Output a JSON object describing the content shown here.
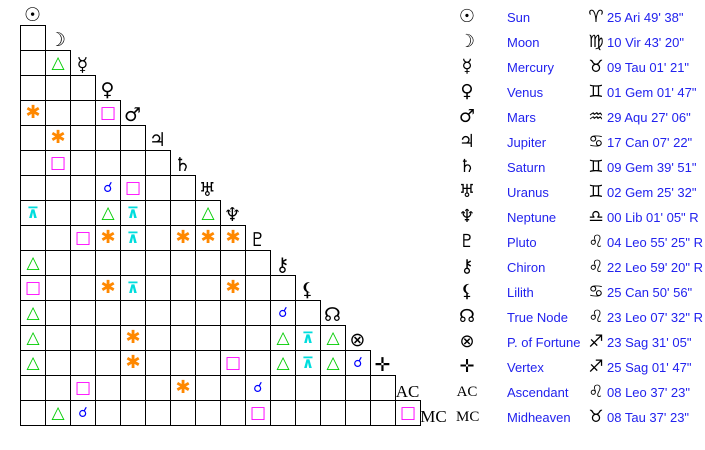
{
  "planets": [
    {
      "name": "Sun",
      "glyph": "☉",
      "icon": "sun-icon",
      "sign_glyph": "♈",
      "sign_icon": "aries-icon",
      "position": "25 Ari 49' 38\""
    },
    {
      "name": "Moon",
      "glyph": "☽",
      "icon": "moon-icon",
      "sign_glyph": "♍",
      "sign_icon": "virgo-icon",
      "position": "10 Vir 43' 20\""
    },
    {
      "name": "Mercury",
      "glyph": "☿",
      "icon": "mercury-icon",
      "sign_glyph": "♉",
      "sign_icon": "taurus-icon",
      "position": "09 Tau 01' 21\""
    },
    {
      "name": "Venus",
      "glyph": "♀",
      "icon": "venus-icon",
      "sign_glyph": "♊",
      "sign_icon": "gemini-icon",
      "position": "01 Gem 01' 47\""
    },
    {
      "name": "Mars",
      "glyph": "♂",
      "icon": "mars-icon",
      "sign_glyph": "♒",
      "sign_icon": "aquarius-icon",
      "position": "29 Aqu 27' 06\""
    },
    {
      "name": "Jupiter",
      "glyph": "♃",
      "icon": "jupiter-icon",
      "sign_glyph": "♋",
      "sign_icon": "cancer-icon",
      "position": "17 Can 07' 22\""
    },
    {
      "name": "Saturn",
      "glyph": "♄",
      "icon": "saturn-icon",
      "sign_glyph": "♊",
      "sign_icon": "gemini-icon",
      "position": "09 Gem 39' 51\""
    },
    {
      "name": "Uranus",
      "glyph": "♅",
      "icon": "uranus-icon",
      "sign_glyph": "♊",
      "sign_icon": "gemini-icon",
      "position": "02 Gem 25' 32\""
    },
    {
      "name": "Neptune",
      "glyph": "♆",
      "icon": "neptune-icon",
      "sign_glyph": "♎",
      "sign_icon": "libra-icon",
      "position": "00 Lib 01' 05\" R"
    },
    {
      "name": "Pluto",
      "glyph": "♇",
      "icon": "pluto-icon",
      "sign_glyph": "♌",
      "sign_icon": "leo-icon",
      "position": "04 Leo 55' 25\" R"
    },
    {
      "name": "Chiron",
      "glyph": "⚷",
      "icon": "chiron-icon",
      "sign_glyph": "♌",
      "sign_icon": "leo-icon",
      "position": "22 Leo 59' 20\" R"
    },
    {
      "name": "Lilith",
      "glyph": "⚸",
      "icon": "lilith-icon",
      "sign_glyph": "♋",
      "sign_icon": "cancer-icon",
      "position": "25 Can 50' 56\""
    },
    {
      "name": "True Node",
      "glyph": "☊",
      "icon": "true-node-icon",
      "sign_glyph": "♌",
      "sign_icon": "leo-icon",
      "position": "23 Leo 07' 32\" R"
    },
    {
      "name": "P. of Fortune",
      "glyph": "⊗",
      "icon": "part-of-fortune-icon",
      "sign_glyph": "♐",
      "sign_icon": "sagittarius-icon",
      "position": "23 Sag 31' 05\""
    },
    {
      "name": "Vertex",
      "glyph": "✛",
      "icon": "vertex-icon",
      "sign_glyph": "♐",
      "sign_icon": "sagittarius-icon",
      "position": "25 Sag 01' 47\""
    },
    {
      "name": "Ascendant",
      "glyph": "AC",
      "icon": "ascendant-icon",
      "sign_glyph": "♌",
      "sign_icon": "leo-icon",
      "position": "08 Leo 37' 23\""
    },
    {
      "name": "Midheaven",
      "glyph": "MC",
      "icon": "midheaven-icon",
      "sign_glyph": "♉",
      "sign_icon": "taurus-icon",
      "position": "08 Tau 37' 23\""
    }
  ],
  "aspect_types": {
    "trine": {
      "glyph": "△",
      "color": "#00cc00"
    },
    "square": {
      "glyph": "□",
      "color": "#ff00ff"
    },
    "sextile": {
      "glyph": "✱",
      "color": "#ff8800"
    },
    "quincunx": {
      "glyph": "⊼",
      "color": "#00dddd"
    },
    "conjunction": {
      "glyph": "☌",
      "color": "#0000ff"
    }
  },
  "aspects": [
    [
      "Mercury",
      "Moon",
      "trine"
    ],
    [
      "Mars",
      "Sun",
      "sextile"
    ],
    [
      "Mars",
      "Venus",
      "square"
    ],
    [
      "Jupiter",
      "Moon",
      "sextile"
    ],
    [
      "Saturn",
      "Moon",
      "square"
    ],
    [
      "Uranus",
      "Venus",
      "conjunction"
    ],
    [
      "Uranus",
      "Mars",
      "square"
    ],
    [
      "Neptune",
      "Sun",
      "quincunx"
    ],
    [
      "Neptune",
      "Venus",
      "trine"
    ],
    [
      "Neptune",
      "Mars",
      "quincunx"
    ],
    [
      "Neptune",
      "Uranus",
      "trine"
    ],
    [
      "Pluto",
      "Mercury",
      "square"
    ],
    [
      "Pluto",
      "Venus",
      "sextile"
    ],
    [
      "Pluto",
      "Mars",
      "quincunx"
    ],
    [
      "Pluto",
      "Saturn",
      "sextile"
    ],
    [
      "Pluto",
      "Uranus",
      "sextile"
    ],
    [
      "Pluto",
      "Neptune",
      "sextile"
    ],
    [
      "Chiron",
      "Sun",
      "trine"
    ],
    [
      "Lilith",
      "Sun",
      "square"
    ],
    [
      "Lilith",
      "Venus",
      "sextile"
    ],
    [
      "Lilith",
      "Mars",
      "quincunx"
    ],
    [
      "Lilith",
      "Neptune",
      "sextile"
    ],
    [
      "True Node",
      "Sun",
      "trine"
    ],
    [
      "True Node",
      "Chiron",
      "conjunction"
    ],
    [
      "P. of Fortune",
      "Sun",
      "trine"
    ],
    [
      "P. of Fortune",
      "Mars",
      "sextile"
    ],
    [
      "P. of Fortune",
      "Chiron",
      "trine"
    ],
    [
      "P. of Fortune",
      "Lilith",
      "quincunx"
    ],
    [
      "P. of Fortune",
      "True Node",
      "trine"
    ],
    [
      "Vertex",
      "Sun",
      "trine"
    ],
    [
      "Vertex",
      "Mars",
      "sextile"
    ],
    [
      "Vertex",
      "Neptune",
      "square"
    ],
    [
      "Vertex",
      "Chiron",
      "trine"
    ],
    [
      "Vertex",
      "Lilith",
      "quincunx"
    ],
    [
      "Vertex",
      "True Node",
      "trine"
    ],
    [
      "Vertex",
      "P. of Fortune",
      "conjunction"
    ],
    [
      "Ascendant",
      "Mercury",
      "square"
    ],
    [
      "Ascendant",
      "Saturn",
      "sextile"
    ],
    [
      "Ascendant",
      "Pluto",
      "conjunction"
    ],
    [
      "Midheaven",
      "Moon",
      "trine"
    ],
    [
      "Midheaven",
      "Mercury",
      "conjunction"
    ],
    [
      "Midheaven",
      "Pluto",
      "square"
    ],
    [
      "Midheaven",
      "Ascendant",
      "square"
    ]
  ]
}
